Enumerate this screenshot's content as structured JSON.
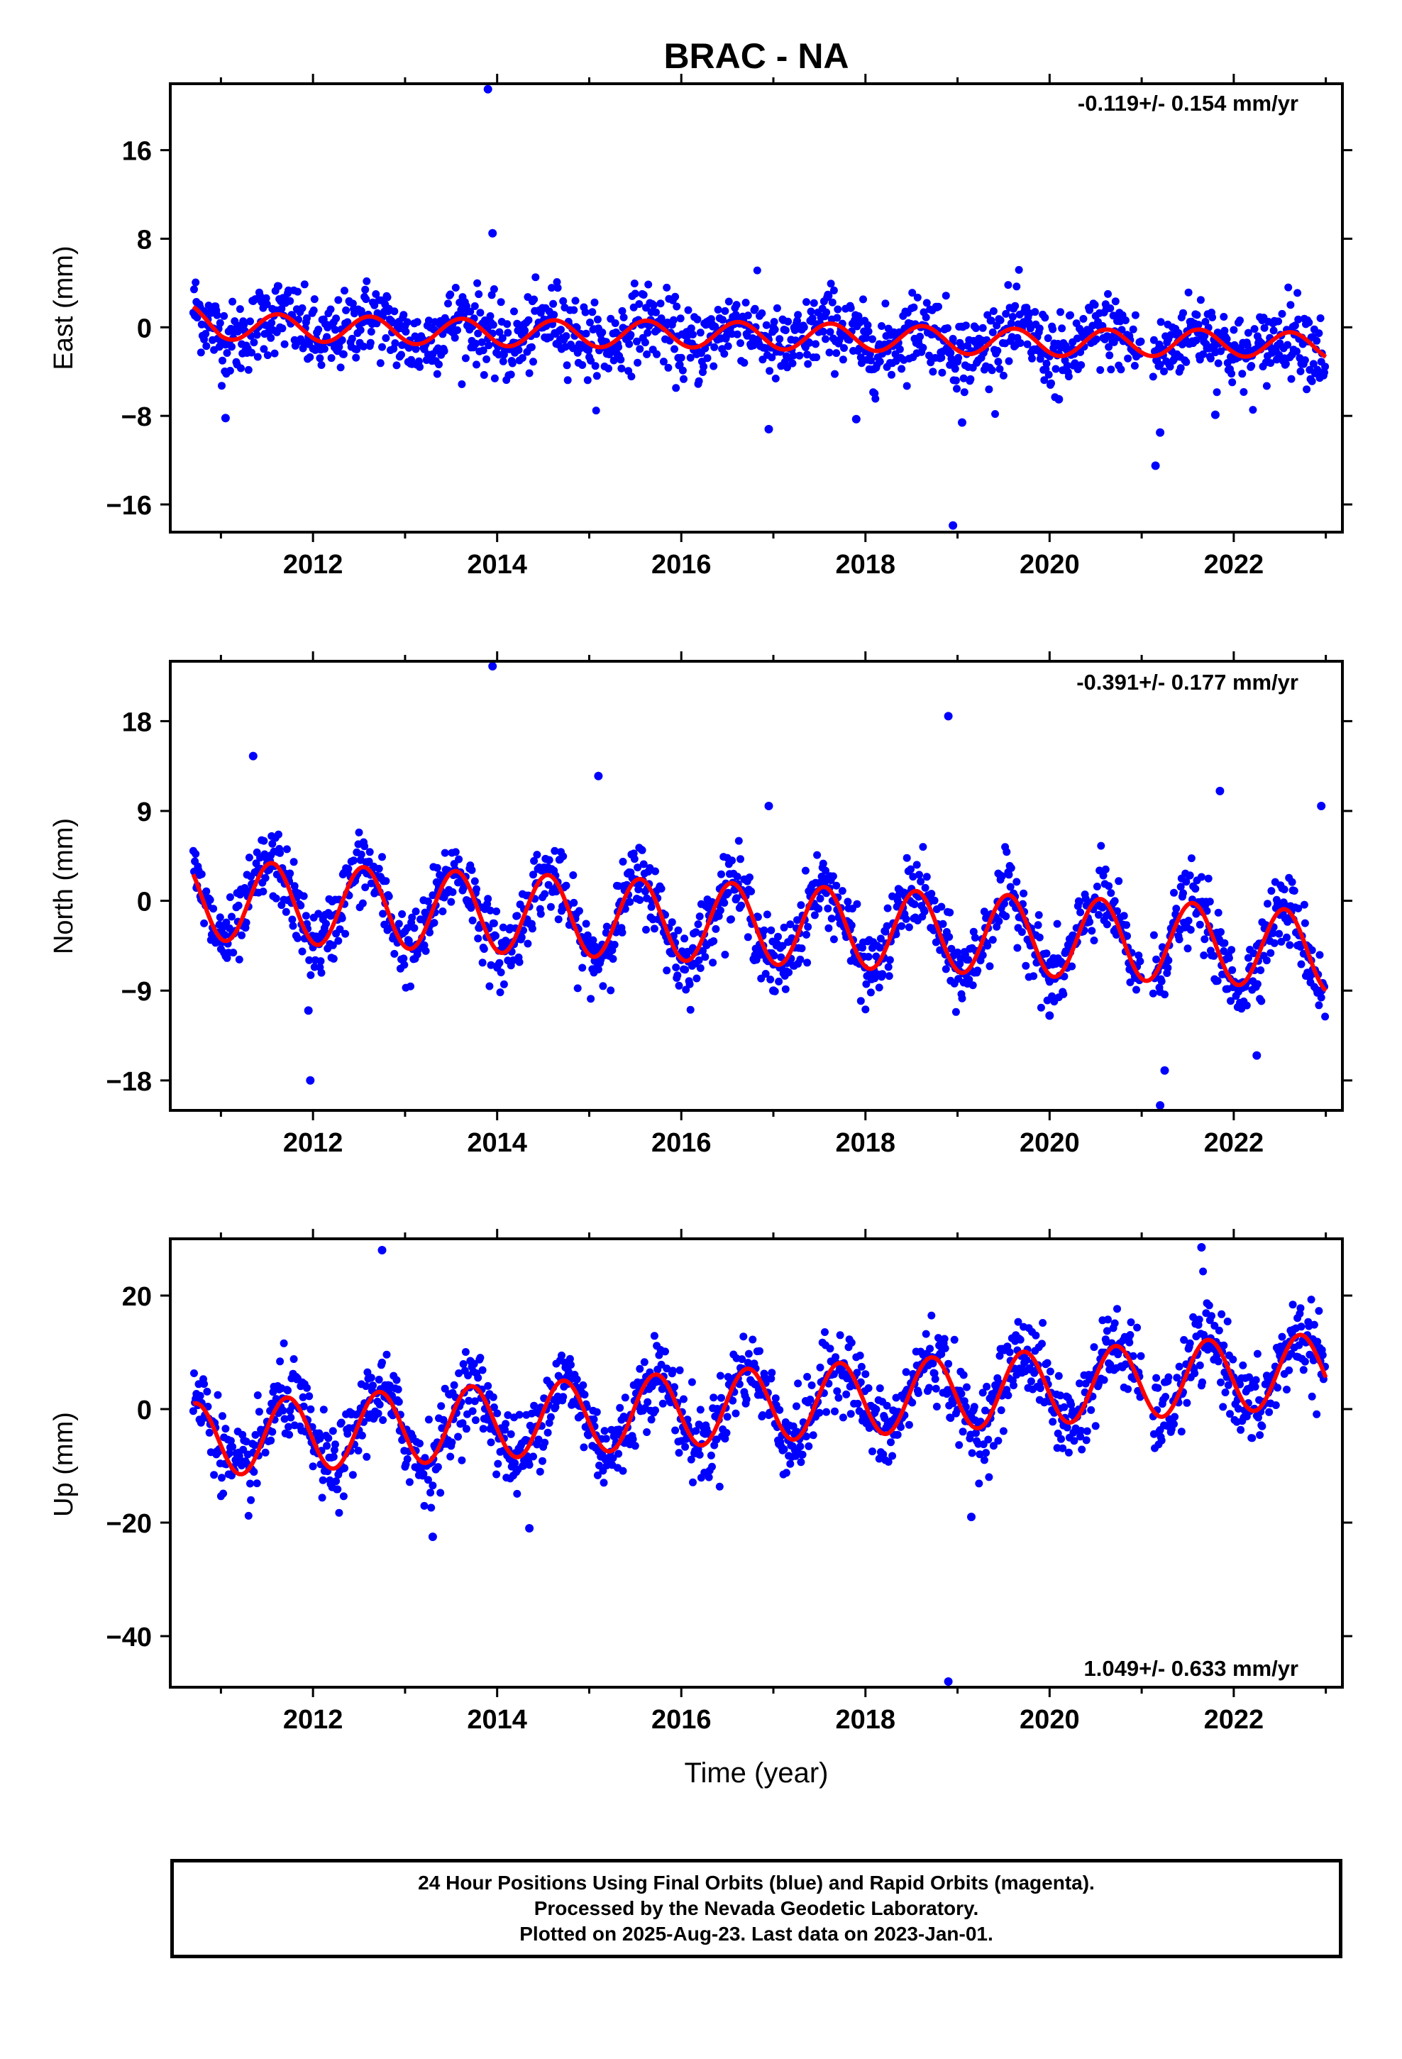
{
  "title": "BRAC - NA",
  "xlabel": "Time (year)",
  "colors": {
    "final_orbits": "#0000ff",
    "model": "#ff0000",
    "axes": "#000000"
  },
  "chart_data": [
    {
      "type": "scatter",
      "name": "east",
      "ylabel": "East (mm)",
      "rate_label": "-0.119+/- 0.154 mm/yr",
      "rate_position": "top-right",
      "xlim": [
        2010.45,
        2023.18
      ],
      "ylim": [
        -18.5,
        22.0
      ],
      "xticks": [
        2012,
        2014,
        2016,
        2018,
        2020,
        2022
      ],
      "xtick_labels": [
        "2012",
        "2014",
        "2016",
        "2018",
        "2020",
        "2022"
      ],
      "yticks": [
        -16,
        -8,
        0,
        8,
        16
      ],
      "ytick_labels": [
        "−16",
        "−8",
        "0",
        "8",
        "16"
      ],
      "model": {
        "rate_mm_per_yr": -0.119,
        "annual_amplitude_mm": 1.2,
        "annual_peak_year_fraction": 0.62,
        "x": [
          2010.7,
          2011.0,
          2012.0,
          2013.0,
          2014.0,
          2015.0,
          2016.0,
          2017.0,
          2018.0,
          2019.0,
          2020.0,
          2021.0,
          2022.0,
          2023.0
        ],
        "y": [
          0.8,
          0.1,
          -0.1,
          -0.3,
          -0.5,
          -0.6,
          -0.6,
          -0.8,
          -0.9,
          -1.2,
          -1.4,
          -1.4,
          -1.4,
          -1.8
        ]
      },
      "scatter_spread_mm": 1.7,
      "outliers": {
        "x": [
          2011.05,
          2013.9,
          2013.95,
          2016.95,
          2017.9,
          2018.95,
          2019.05,
          2021.15,
          2021.2,
          2021.8,
          2020.1
        ],
        "y": [
          -8.2,
          21.5,
          8.5,
          -9.2,
          -8.3,
          -17.9,
          -8.6,
          -12.5,
          -9.5,
          -7.9,
          -6.5
        ]
      },
      "gap": [
        2021.0,
        2021.12
      ]
    },
    {
      "type": "scatter",
      "name": "north",
      "ylabel": "North (mm)",
      "rate_label": "-0.391+/- 0.177 mm/yr",
      "rate_position": "top-right",
      "xlim": [
        2010.45,
        2023.18
      ],
      "ylim": [
        -21.0,
        24.0
      ],
      "xticks": [
        2012,
        2014,
        2016,
        2018,
        2020,
        2022
      ],
      "xtick_labels": [
        "2012",
        "2014",
        "2016",
        "2018",
        "2020",
        "2022"
      ],
      "yticks": [
        -18,
        -9,
        0,
        9,
        18
      ],
      "ytick_labels": [
        "−18",
        "−9",
        "0",
        "9",
        "18"
      ],
      "model": {
        "rate_mm_per_yr": -0.391,
        "annual_amplitude_mm": 4.0,
        "annual_peak_year_fraction": 0.55,
        "x": [
          2010.7,
          2011.0,
          2012.0,
          2013.0,
          2014.0,
          2015.0,
          2016.0,
          2017.0,
          2018.0,
          2019.0,
          2020.0,
          2021.0,
          2022.0,
          2023.0
        ],
        "y": [
          0.3,
          0.0,
          -0.4,
          -0.8,
          -1.2,
          -1.6,
          -2.0,
          -2.4,
          -2.8,
          -3.2,
          -3.6,
          -4.0,
          -4.4,
          -5.2
        ]
      },
      "scatter_spread_mm": 1.8,
      "outliers": {
        "x": [
          2011.35,
          2011.95,
          2011.97,
          2013.95,
          2015.1,
          2016.95,
          2017.0,
          2018.9,
          2020.0,
          2021.2,
          2021.25,
          2021.85,
          2022.25,
          2022.95
        ],
        "y": [
          14.5,
          -11.0,
          -18.0,
          23.5,
          12.5,
          9.5,
          -9.0,
          18.5,
          -11.5,
          -20.5,
          -17.0,
          11.0,
          -15.5,
          9.5
        ]
      },
      "gap": [
        2021.0,
        2021.12
      ]
    },
    {
      "type": "scatter",
      "name": "up",
      "ylabel": "Up (mm)",
      "rate_label": "1.049+/- 0.633 mm/yr",
      "rate_position": "bottom-right",
      "xlim": [
        2010.45,
        2023.18
      ],
      "ylim": [
        -49.0,
        30.0
      ],
      "xticks": [
        2012,
        2014,
        2016,
        2018,
        2020,
        2022
      ],
      "xtick_labels": [
        "2012",
        "2014",
        "2016",
        "2018",
        "2020",
        "2022"
      ],
      "yticks": [
        -40,
        -20,
        0,
        20
      ],
      "ytick_labels": [
        "−40",
        "−20",
        "0",
        "20"
      ],
      "model": {
        "rate_mm_per_yr": 1.049,
        "annual_amplitude_mm": 6.5,
        "annual_peak_year_fraction": 0.72,
        "x": [
          2010.7,
          2011.0,
          2012.0,
          2013.0,
          2014.0,
          2015.0,
          2016.0,
          2017.0,
          2018.0,
          2019.0,
          2020.0,
          2021.0,
          2022.0,
          2023.0
        ],
        "y": [
          -5.5,
          -5.2,
          -4.2,
          -3.2,
          -2.2,
          -1.2,
          -0.1,
          0.9,
          1.9,
          2.9,
          3.9,
          4.9,
          6.0,
          6.8
        ]
      },
      "scatter_spread_mm": 3.5,
      "outliers": {
        "x": [
          2012.75,
          2013.3,
          2014.35,
          2018.9,
          2019.15,
          2021.65
        ],
        "y": [
          28.0,
          -22.5,
          -21.0,
          -48.0,
          -19.0,
          28.5
        ]
      },
      "gap": [
        2021.0,
        2021.12
      ]
    }
  ],
  "caption": {
    "line1": "24 Hour Positions Using Final Orbits (blue) and Rapid Orbits (magenta).",
    "line2": "Processed by the Nevada Geodetic Laboratory.",
    "line3": "Plotted on 2025-Aug-23. Last data on 2023-Jan-01."
  }
}
